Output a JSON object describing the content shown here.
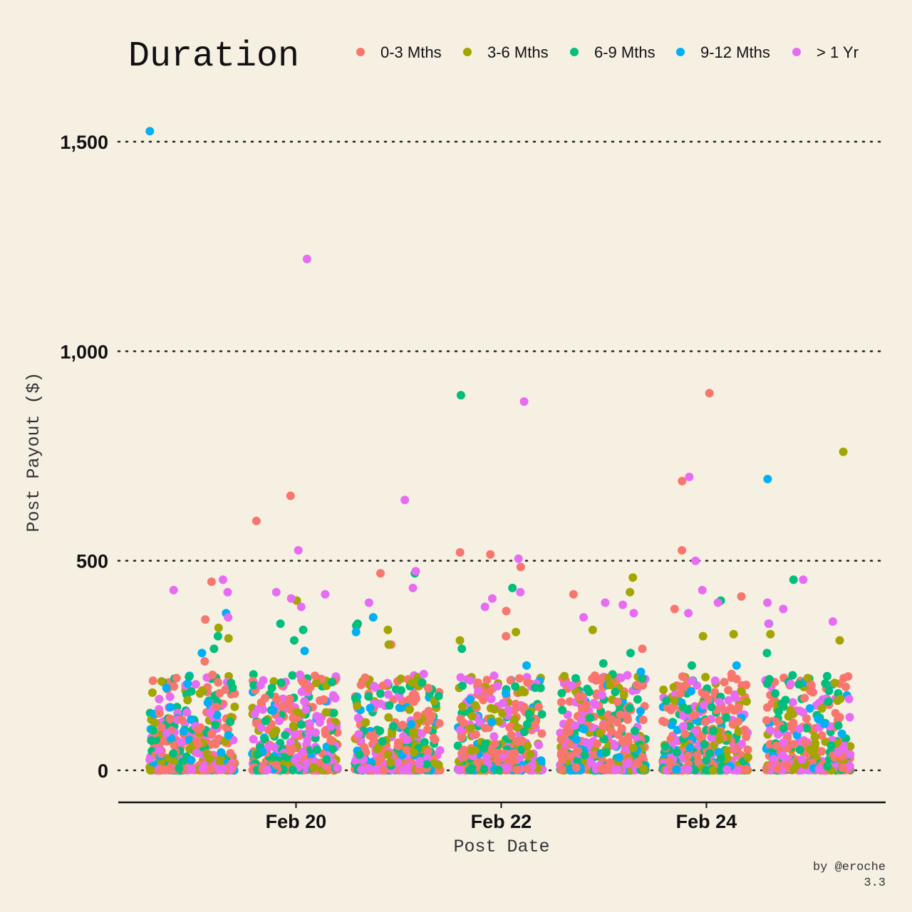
{
  "chart_data": {
    "type": "scatter",
    "title": "Duration",
    "xlabel": "Post Date",
    "ylabel": "Post Payout ($)",
    "caption": [
      "by @eroche",
      "3.3"
    ],
    "ylim": [
      -75,
      1600
    ],
    "yticks": [
      0,
      500,
      1000,
      1500
    ],
    "ytick_labels": [
      "0",
      "500",
      "1,000",
      "1,500"
    ],
    "xdates": [
      "Feb 19",
      "Feb 20",
      "Feb 21",
      "Feb 22",
      "Feb 23",
      "Feb 24",
      "Feb 25"
    ],
    "xticks": [
      {
        "date": "Feb 20",
        "label": "Feb 20"
      },
      {
        "date": "Feb 22",
        "label": "Feb 22"
      },
      {
        "date": "Feb 24",
        "label": "Feb 24"
      }
    ],
    "grid": "horizontal dotted",
    "legend_position": "top",
    "series": [
      {
        "name": "0-3 Mths",
        "color": "#f8766d",
        "outliers": [
          {
            "x": "Feb 19",
            "y": 450
          },
          {
            "x": "Feb 19",
            "y": 360
          },
          {
            "x": "Feb 19",
            "y": 260
          },
          {
            "x": "Feb 20",
            "y": 595
          },
          {
            "x": "Feb 20",
            "y": 655
          },
          {
            "x": "Feb 21",
            "y": 470
          },
          {
            "x": "Feb 21",
            "y": 345
          },
          {
            "x": "Feb 21",
            "y": 300
          },
          {
            "x": "Feb 22",
            "y": 520
          },
          {
            "x": "Feb 22",
            "y": 515
          },
          {
            "x": "Feb 22",
            "y": 380
          },
          {
            "x": "Feb 22",
            "y": 485
          },
          {
            "x": "Feb 22",
            "y": 320
          },
          {
            "x": "Feb 23",
            "y": 420
          },
          {
            "x": "Feb 23",
            "y": 290
          },
          {
            "x": "Feb 24",
            "y": 900
          },
          {
            "x": "Feb 24",
            "y": 690
          },
          {
            "x": "Feb 24",
            "y": 525
          },
          {
            "x": "Feb 24",
            "y": 415
          },
          {
            "x": "Feb 24",
            "y": 385
          },
          {
            "x": "Feb 25",
            "y": 220
          },
          {
            "x": "Feb 25",
            "y": 150
          }
        ]
      },
      {
        "name": "3-6 Mths",
        "color": "#a3a500",
        "outliers": [
          {
            "x": "Feb 19",
            "y": 340
          },
          {
            "x": "Feb 19",
            "y": 315
          },
          {
            "x": "Feb 20",
            "y": 405
          },
          {
            "x": "Feb 21",
            "y": 335
          },
          {
            "x": "Feb 21",
            "y": 300
          },
          {
            "x": "Feb 22",
            "y": 330
          },
          {
            "x": "Feb 22",
            "y": 310
          },
          {
            "x": "Feb 23",
            "y": 460
          },
          {
            "x": "Feb 23",
            "y": 425
          },
          {
            "x": "Feb 23",
            "y": 335
          },
          {
            "x": "Feb 24",
            "y": 325
          },
          {
            "x": "Feb 24",
            "y": 320
          },
          {
            "x": "Feb 25",
            "y": 760
          },
          {
            "x": "Feb 25",
            "y": 325
          },
          {
            "x": "Feb 25",
            "y": 310
          }
        ]
      },
      {
        "name": "6-9 Mths",
        "color": "#00bf7d",
        "outliers": [
          {
            "x": "Feb 19",
            "y": 320
          },
          {
            "x": "Feb 19",
            "y": 290
          },
          {
            "x": "Feb 20",
            "y": 350
          },
          {
            "x": "Feb 20",
            "y": 310
          },
          {
            "x": "Feb 20",
            "y": 335
          },
          {
            "x": "Feb 21",
            "y": 470
          },
          {
            "x": "Feb 21",
            "y": 350
          },
          {
            "x": "Feb 21",
            "y": 345
          },
          {
            "x": "Feb 22",
            "y": 895
          },
          {
            "x": "Feb 22",
            "y": 435
          },
          {
            "x": "Feb 22",
            "y": 290
          },
          {
            "x": "Feb 23",
            "y": 280
          },
          {
            "x": "Feb 23",
            "y": 255
          },
          {
            "x": "Feb 24",
            "y": 405
          },
          {
            "x": "Feb 24",
            "y": 250
          },
          {
            "x": "Feb 25",
            "y": 455
          },
          {
            "x": "Feb 25",
            "y": 280
          }
        ]
      },
      {
        "name": "9-12 Mths",
        "color": "#00b0f6",
        "outliers": [
          {
            "x": "Feb 19",
            "y": 1525
          },
          {
            "x": "Feb 19",
            "y": 375
          },
          {
            "x": "Feb 19",
            "y": 280
          },
          {
            "x": "Feb 20",
            "y": 285
          },
          {
            "x": "Feb 21",
            "y": 365
          },
          {
            "x": "Feb 21",
            "y": 330
          },
          {
            "x": "Feb 22",
            "y": 250
          },
          {
            "x": "Feb 23",
            "y": 235
          },
          {
            "x": "Feb 24",
            "y": 250
          },
          {
            "x": "Feb 25",
            "y": 695
          },
          {
            "x": "Feb 25",
            "y": 350
          }
        ]
      },
      {
        "name": "> 1 Yr",
        "color": "#e76bf3",
        "outliers": [
          {
            "x": "Feb 19",
            "y": 455
          },
          {
            "x": "Feb 19",
            "y": 430
          },
          {
            "x": "Feb 19",
            "y": 425
          },
          {
            "x": "Feb 19",
            "y": 365
          },
          {
            "x": "Feb 20",
            "y": 1220
          },
          {
            "x": "Feb 20",
            "y": 525
          },
          {
            "x": "Feb 20",
            "y": 425
          },
          {
            "x": "Feb 20",
            "y": 420
          },
          {
            "x": "Feb 20",
            "y": 410
          },
          {
            "x": "Feb 20",
            "y": 390
          },
          {
            "x": "Feb 21",
            "y": 645
          },
          {
            "x": "Feb 21",
            "y": 475
          },
          {
            "x": "Feb 21",
            "y": 435
          },
          {
            "x": "Feb 21",
            "y": 400
          },
          {
            "x": "Feb 22",
            "y": 880
          },
          {
            "x": "Feb 22",
            "y": 505
          },
          {
            "x": "Feb 22",
            "y": 425
          },
          {
            "x": "Feb 22",
            "y": 410
          },
          {
            "x": "Feb 22",
            "y": 390
          },
          {
            "x": "Feb 23",
            "y": 400
          },
          {
            "x": "Feb 23",
            "y": 395
          },
          {
            "x": "Feb 23",
            "y": 375
          },
          {
            "x": "Feb 23",
            "y": 365
          },
          {
            "x": "Feb 24",
            "y": 700
          },
          {
            "x": "Feb 24",
            "y": 500
          },
          {
            "x": "Feb 24",
            "y": 430
          },
          {
            "x": "Feb 24",
            "y": 400
          },
          {
            "x": "Feb 24",
            "y": 375
          },
          {
            "x": "Feb 25",
            "y": 455
          },
          {
            "x": "Feb 25",
            "y": 400
          },
          {
            "x": "Feb 25",
            "y": 385
          },
          {
            "x": "Feb 25",
            "y": 355
          },
          {
            "x": "Feb 25",
            "y": 350
          }
        ]
      }
    ],
    "note_dense_region": "Several hundred posts per day clustered between 0 and 250 for all groups"
  }
}
